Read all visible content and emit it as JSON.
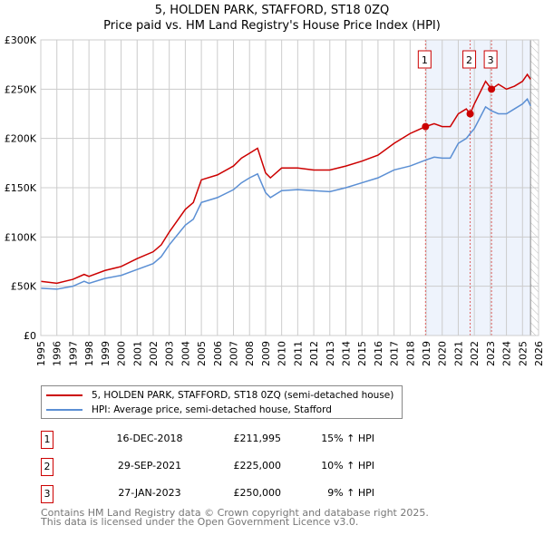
{
  "chart_data": {
    "type": "line",
    "title": "5, HOLDEN PARK, STAFFORD, ST18 0ZQ",
    "subtitle": "Price paid vs. HM Land Registry's House Price Index (HPI)",
    "xlim": [
      1995,
      2026
    ],
    "ylim": [
      0,
      300000
    ],
    "x_ticks": [
      "1995",
      "1996",
      "1997",
      "1998",
      "1999",
      "2000",
      "2001",
      "2002",
      "2003",
      "2004",
      "2005",
      "2006",
      "2007",
      "2008",
      "2009",
      "2010",
      "2011",
      "2012",
      "2013",
      "2014",
      "2015",
      "2016",
      "2017",
      "2018",
      "2019",
      "2020",
      "2021",
      "2022",
      "2023",
      "2024",
      "2025",
      "2026"
    ],
    "y_ticks": [
      {
        "v": 0,
        "label": "£0"
      },
      {
        "v": 50000,
        "label": "£50K"
      },
      {
        "v": 100000,
        "label": "£100K"
      },
      {
        "v": 150000,
        "label": "£150K"
      },
      {
        "v": 200000,
        "label": "£200K"
      },
      {
        "v": 250000,
        "label": "£250K"
      },
      {
        "v": 300000,
        "label": "£300K"
      }
    ],
    "grid": true,
    "series": [
      {
        "name": "5, HOLDEN PARK, STAFFORD, ST18 0ZQ (semi-detached house)",
        "color": "#cc0000",
        "x": [
          1995,
          1996,
          1997,
          1997.7,
          1998,
          1999,
          2000,
          2001,
          2002,
          2002.5,
          2003,
          2004,
          2004.5,
          2005,
          2006,
          2007,
          2007.5,
          2008,
          2008.5,
          2009,
          2009.3,
          2010,
          2011,
          2012,
          2013,
          2014,
          2015,
          2016,
          2017,
          2018,
          2018.96,
          2019.5,
          2020,
          2020.5,
          2021,
          2021.5,
          2021.74,
          2022,
          2022.7,
          2023.07,
          2023.5,
          2024,
          2024.5,
          2025,
          2025.3,
          2025.5
        ],
        "y": [
          55000,
          53000,
          57000,
          62000,
          60000,
          66000,
          70000,
          78000,
          85000,
          92000,
          105000,
          128000,
          135000,
          158000,
          163000,
          172000,
          180000,
          185000,
          190000,
          165000,
          160000,
          170000,
          170000,
          168000,
          168000,
          172000,
          177000,
          183000,
          195000,
          205000,
          211995,
          215000,
          212000,
          212000,
          225000,
          230000,
          225000,
          235000,
          258000,
          250000,
          255000,
          250000,
          253000,
          258000,
          265000,
          260000
        ]
      },
      {
        "name": "HPI: Average price, semi-detached house, Stafford",
        "color": "#5b8fd4",
        "x": [
          1995,
          1996,
          1997,
          1997.7,
          1998,
          1999,
          2000,
          2001,
          2002,
          2002.5,
          2003,
          2004,
          2004.5,
          2005,
          2006,
          2007,
          2007.5,
          2008,
          2008.5,
          2009,
          2009.3,
          2010,
          2011,
          2012,
          2013,
          2014,
          2015,
          2016,
          2017,
          2018,
          2018.96,
          2019.5,
          2020,
          2020.5,
          2021,
          2021.5,
          2021.74,
          2022,
          2022.7,
          2023.07,
          2023.5,
          2024,
          2024.5,
          2025,
          2025.3,
          2025.5
        ],
        "y": [
          48000,
          47000,
          50000,
          55000,
          53000,
          58000,
          61000,
          67000,
          73000,
          80000,
          92000,
          112000,
          118000,
          135000,
          140000,
          148000,
          155000,
          160000,
          164000,
          145000,
          140000,
          147000,
          148000,
          147000,
          146000,
          150000,
          155000,
          160000,
          168000,
          172000,
          178000,
          181000,
          180000,
          180000,
          195000,
          200000,
          205000,
          210000,
          232000,
          228000,
          225000,
          225000,
          230000,
          235000,
          240000,
          233000
        ]
      }
    ],
    "sales": [
      {
        "label": "1",
        "date": "16-DEC-2018",
        "x": 2018.96,
        "price": "£211,995",
        "value": 211995,
        "hpi": "15% ↑ HPI"
      },
      {
        "label": "2",
        "date": "29-SEP-2021",
        "x": 2021.74,
        "price": "£225,000",
        "value": 225000,
        "hpi": "10% ↑ HPI"
      },
      {
        "label": "3",
        "date": "27-JAN-2023",
        "x": 2023.07,
        "price": "£250,000",
        "value": 250000,
        "hpi": "9% ↑ HPI"
      }
    ],
    "shaded_from": 2018.96,
    "data_end": 2025.5
  },
  "footer": {
    "line1": "Contains HM Land Registry data © Crown copyright and database right 2025.",
    "line2": "This data is licensed under the Open Government Licence v3.0."
  }
}
